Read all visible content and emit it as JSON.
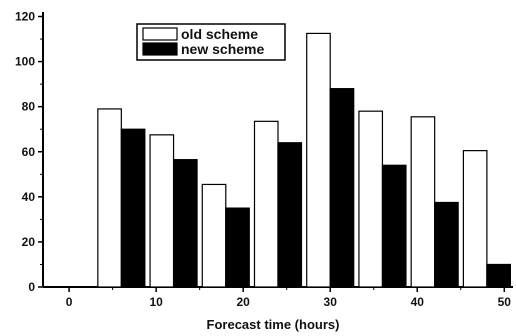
{
  "chart_data": {
    "type": "bar",
    "title": "",
    "xlabel": "Forecast time (hours)",
    "ylabel": "",
    "xlim": [
      -3,
      51
    ],
    "ylim": [
      0,
      122
    ],
    "x_ticks": [
      0,
      10,
      20,
      30,
      40,
      50
    ],
    "y_ticks": [
      0,
      20,
      40,
      60,
      80,
      100,
      120
    ],
    "categories": [
      6,
      12,
      18,
      24,
      30,
      36,
      42,
      48
    ],
    "series": [
      {
        "name": "old scheme",
        "values": [
          79,
          67.5,
          45.5,
          73.5,
          112.5,
          78,
          75.5,
          60.5
        ],
        "color": "#ffffff"
      },
      {
        "name": "new scheme",
        "values": [
          70,
          56.5,
          35,
          64,
          88,
          54,
          37.5,
          10
        ],
        "color": "#000000"
      }
    ],
    "legend": "top-left",
    "grid": false
  }
}
